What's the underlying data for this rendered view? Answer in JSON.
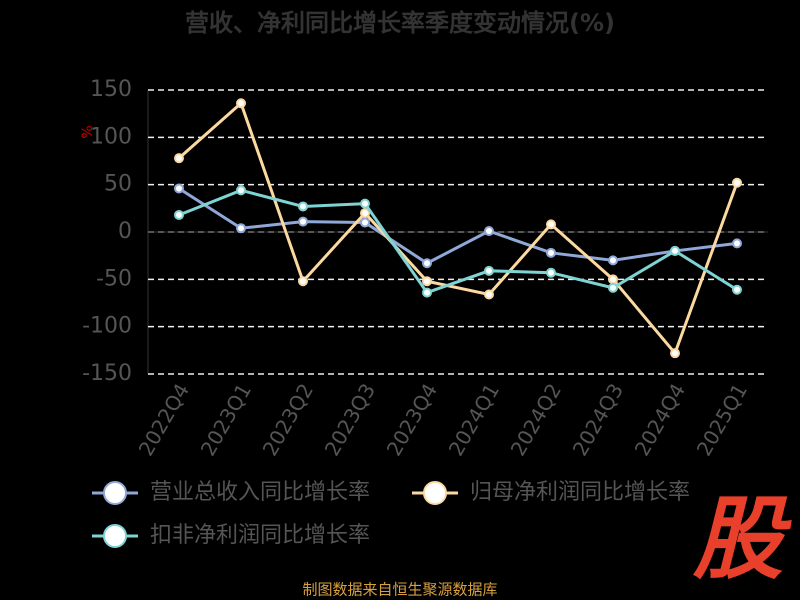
{
  "chart_data": {
    "type": "line",
    "title": "营收、净利同比增长率季度变动情况(%)",
    "y_label": "%",
    "categories": [
      "2022Q4",
      "2023Q1",
      "2023Q2",
      "2023Q3",
      "2023Q4",
      "2024Q1",
      "2024Q2",
      "2024Q3",
      "2024Q4",
      "2025Q1"
    ],
    "series": [
      {
        "name": "营业总收入同比增长率",
        "color": "#8fa8d8",
        "values": [
          46,
          4,
          11,
          10,
          -33,
          1,
          -22,
          -30,
          -20,
          -12
        ]
      },
      {
        "name": "归母净利润同比增长率",
        "color": "#fcd9a0",
        "values": [
          78,
          136,
          -52,
          20,
          -52,
          -66,
          8,
          -50,
          -128,
          52
        ]
      },
      {
        "name": "扣非净利润同比增长率",
        "color": "#7fd3d3",
        "values": [
          18,
          44,
          27,
          30,
          -64,
          -41,
          -43,
          -59,
          -20,
          -61
        ]
      }
    ],
    "ylim": [
      -150,
      150
    ],
    "yticks": [
      -150,
      -100,
      -50,
      0,
      50,
      100,
      150
    ],
    "grid": true,
    "source": "制图数据来自恒生聚源数据库",
    "watermark": "股"
  }
}
